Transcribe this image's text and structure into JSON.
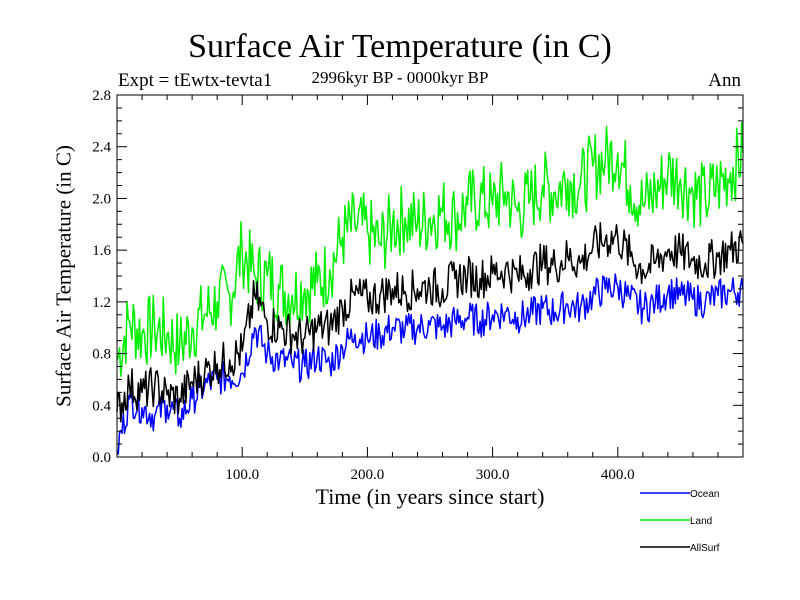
{
  "chart_data": {
    "type": "line",
    "title": "Surface Air Temperature (in C)",
    "subtitle": "2996kyr BP - 0000kyr BP",
    "annotation_left": "Expt = tEwtx-tevta1",
    "annotation_right": "Ann",
    "xlabel": "Time (in years since start)",
    "ylabel": "Surface Air Temperature (in C)",
    "xlim": [
      0,
      500
    ],
    "ylim": [
      0.0,
      2.8
    ],
    "xticks": [
      100,
      200,
      300,
      400
    ],
    "xtick_labels": [
      "100.0",
      "200.0",
      "300.0",
      "400.0"
    ],
    "yticks": [
      0.0,
      0.4,
      0.8,
      1.2,
      1.6,
      2.0,
      2.4,
      2.8
    ],
    "ytick_labels": [
      "0.0",
      "0.4",
      "0.8",
      "1.2",
      "1.6",
      "2.0",
      "2.4",
      "2.8"
    ],
    "grid": false,
    "legend_position": "bottom-right-outside",
    "x": [
      0,
      10,
      20,
      30,
      40,
      50,
      60,
      70,
      80,
      90,
      100,
      110,
      120,
      130,
      140,
      150,
      160,
      170,
      180,
      190,
      200,
      210,
      220,
      230,
      240,
      250,
      260,
      270,
      280,
      290,
      300,
      310,
      320,
      330,
      340,
      350,
      360,
      370,
      380,
      390,
      400,
      410,
      420,
      430,
      440,
      450,
      460,
      470,
      480,
      490,
      500
    ],
    "series": [
      {
        "name": "Ocean",
        "color": "#0000ff",
        "values": [
          0.05,
          0.45,
          0.38,
          0.32,
          0.4,
          0.3,
          0.45,
          0.55,
          0.6,
          0.62,
          0.65,
          1.0,
          0.8,
          0.75,
          0.72,
          0.7,
          0.78,
          0.72,
          0.85,
          0.95,
          0.92,
          0.95,
          1.0,
          0.98,
          1.0,
          1.02,
          1.0,
          1.05,
          1.08,
          1.05,
          1.1,
          1.12,
          1.08,
          1.1,
          1.15,
          1.12,
          1.18,
          1.15,
          1.25,
          1.3,
          1.32,
          1.22,
          1.15,
          1.2,
          1.28,
          1.25,
          1.22,
          1.2,
          1.25,
          1.28,
          1.3
        ]
      },
      {
        "name": "Land",
        "color": "#00ee00",
        "values": [
          0.75,
          1.05,
          0.95,
          1.0,
          0.95,
          0.85,
          1.0,
          1.1,
          1.2,
          1.25,
          1.6,
          1.4,
          1.4,
          1.3,
          1.25,
          1.3,
          1.35,
          1.45,
          1.7,
          1.8,
          1.75,
          1.65,
          1.8,
          1.85,
          1.8,
          1.85,
          1.9,
          1.85,
          1.95,
          2.0,
          1.95,
          2.05,
          1.9,
          2.0,
          2.1,
          2.05,
          2.15,
          2.1,
          2.25,
          2.3,
          2.35,
          2.1,
          1.95,
          2.05,
          2.2,
          2.15,
          2.05,
          2.0,
          2.1,
          2.2,
          2.35
        ]
      },
      {
        "name": "AllSurf",
        "color": "#000000",
        "values": [
          0.35,
          0.55,
          0.5,
          0.55,
          0.48,
          0.45,
          0.58,
          0.65,
          0.72,
          0.75,
          0.82,
          1.25,
          1.05,
          1.0,
          0.95,
          0.92,
          1.0,
          1.0,
          1.15,
          1.25,
          1.22,
          1.25,
          1.3,
          1.28,
          1.3,
          1.32,
          1.3,
          1.38,
          1.4,
          1.38,
          1.42,
          1.45,
          1.4,
          1.45,
          1.5,
          1.48,
          1.55,
          1.5,
          1.62,
          1.68,
          1.7,
          1.55,
          1.45,
          1.5,
          1.6,
          1.58,
          1.52,
          1.5,
          1.55,
          1.6,
          1.65
        ]
      }
    ]
  }
}
